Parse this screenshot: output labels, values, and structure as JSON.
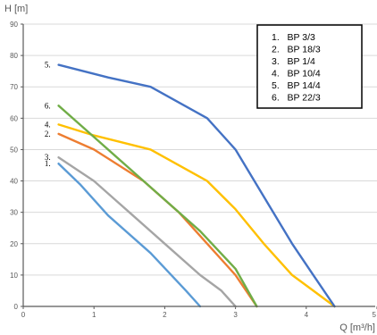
{
  "chart_data": {
    "type": "line",
    "xlabel": "Q [m³/h]",
    "ylabel": "H [m]",
    "xlim": [
      0,
      5
    ],
    "ylim": [
      0,
      90
    ],
    "x_ticks": [
      "0",
      "1",
      "2",
      "3",
      "4",
      "5"
    ],
    "y_ticks": [
      "0",
      "10",
      "20",
      "30",
      "40",
      "50",
      "60",
      "70",
      "80",
      "90"
    ],
    "grid": "horizontal",
    "legend_position": "top-right",
    "legend": [
      "1.   BP 3/3",
      "2.   BP 18/3",
      "3.   BP 1/4",
      "4.   BP 10/4",
      "5.   BP 14/4",
      "6.   BP 22/3"
    ],
    "series": [
      {
        "name": "1.   BP 3/3",
        "tag": "1.",
        "color": "#5b9bd5",
        "points": [
          [
            0.5,
            45.5
          ],
          [
            0.8,
            39
          ],
          [
            1.2,
            29
          ],
          [
            1.8,
            17
          ],
          [
            2.3,
            5
          ],
          [
            2.5,
            0
          ]
        ]
      },
      {
        "name": "2.   BP 18/3",
        "tag": "2.",
        "color": "#ed7d31",
        "points": [
          [
            0.5,
            55
          ],
          [
            1.0,
            50
          ],
          [
            1.7,
            40
          ],
          [
            2.2,
            30
          ],
          [
            2.6,
            20
          ],
          [
            3.0,
            10
          ],
          [
            3.3,
            0
          ]
        ]
      },
      {
        "name": "3.   BP 1/4",
        "tag": "3.",
        "color": "#a5a5a5",
        "points": [
          [
            0.5,
            47.5
          ],
          [
            1.0,
            40
          ],
          [
            1.5,
            30
          ],
          [
            2.0,
            20
          ],
          [
            2.5,
            10
          ],
          [
            2.8,
            5
          ],
          [
            3.0,
            0
          ]
        ]
      },
      {
        "name": "4.   BP 10/4",
        "tag": "4.",
        "color": "#ffc000",
        "points": [
          [
            0.5,
            58
          ],
          [
            1.0,
            54.5
          ],
          [
            1.8,
            50
          ],
          [
            2.6,
            40
          ],
          [
            3.0,
            31
          ],
          [
            3.4,
            20
          ],
          [
            3.8,
            10
          ],
          [
            4.1,
            5
          ],
          [
            4.4,
            0
          ]
        ]
      },
      {
        "name": "5.   BP 14/4",
        "tag": "5.",
        "color": "#4472c4",
        "points": [
          [
            0.5,
            77
          ],
          [
            1.2,
            73
          ],
          [
            1.8,
            70
          ],
          [
            2.6,
            60
          ],
          [
            3.0,
            50
          ],
          [
            3.4,
            35
          ],
          [
            3.8,
            20
          ],
          [
            4.1,
            10
          ],
          [
            4.4,
            0
          ]
        ]
      },
      {
        "name": "6.   BP 22/3",
        "tag": "6.",
        "color": "#70ad47",
        "points": [
          [
            0.5,
            64
          ],
          [
            1.0,
            54
          ],
          [
            1.5,
            44
          ],
          [
            2.0,
            34
          ],
          [
            2.5,
            24
          ],
          [
            3.0,
            12
          ],
          [
            3.3,
            0
          ]
        ]
      }
    ]
  }
}
